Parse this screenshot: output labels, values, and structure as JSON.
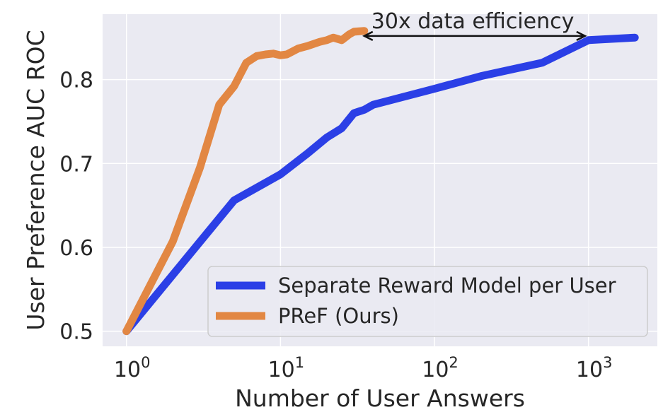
{
  "chart_data": {
    "type": "line",
    "xlabel": "Number of User Answers",
    "ylabel": "User Preference AUC ROC",
    "xscale": "log",
    "xlim": [
      0.7,
      2800
    ],
    "ylim": [
      0.482,
      0.878
    ],
    "grid": true,
    "legend_position": "lower-right",
    "x_ticks": [
      {
        "value": 1,
        "base": "10",
        "exp": "0"
      },
      {
        "value": 10,
        "base": "10",
        "exp": "1"
      },
      {
        "value": 100,
        "base": "10",
        "exp": "2"
      },
      {
        "value": 1000,
        "base": "10",
        "exp": "3"
      }
    ],
    "y_ticks": [
      {
        "value": 0.5,
        "label": "0.5"
      },
      {
        "value": 0.6,
        "label": "0.6"
      },
      {
        "value": 0.7,
        "label": "0.7"
      },
      {
        "value": 0.8,
        "label": "0.8"
      }
    ],
    "series": [
      {
        "name": "Separate Reward Model per User",
        "color": "#2b3fe6",
        "points": [
          [
            1,
            0.5
          ],
          [
            5,
            0.656
          ],
          [
            10,
            0.687
          ],
          [
            15,
            0.712
          ],
          [
            20,
            0.731
          ],
          [
            25,
            0.742
          ],
          [
            30,
            0.76
          ],
          [
            35,
            0.764
          ],
          [
            40,
            0.77
          ],
          [
            100,
            0.789
          ],
          [
            200,
            0.804
          ],
          [
            500,
            0.82
          ],
          [
            1000,
            0.847
          ],
          [
            2000,
            0.85
          ]
        ]
      },
      {
        "name": "PReF (Ours)",
        "color": "#e28743",
        "points": [
          [
            1,
            0.5
          ],
          [
            2,
            0.607
          ],
          [
            3,
            0.695
          ],
          [
            4,
            0.77
          ],
          [
            5,
            0.792
          ],
          [
            6,
            0.82
          ],
          [
            7,
            0.828
          ],
          [
            8,
            0.83
          ],
          [
            9,
            0.831
          ],
          [
            10,
            0.829
          ],
          [
            11,
            0.83
          ],
          [
            13,
            0.837
          ],
          [
            15,
            0.84
          ],
          [
            18,
            0.845
          ],
          [
            20,
            0.847
          ],
          [
            22,
            0.85
          ],
          [
            25,
            0.847
          ],
          [
            28,
            0.854
          ],
          [
            30,
            0.857
          ],
          [
            35,
            0.858
          ]
        ]
      }
    ],
    "annotation": {
      "text": "30x data efficiency",
      "arrow_from": [
        35,
        0.852
      ],
      "arrow_to": [
        950,
        0.852
      ]
    }
  }
}
